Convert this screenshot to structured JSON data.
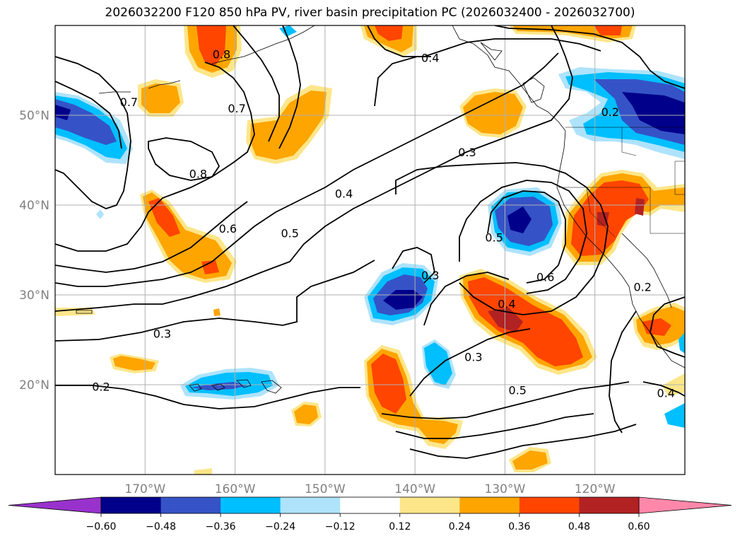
{
  "title": "2026032200 F120 850 hPa PV, river basin precipitation PC (2026032400 - 2026032700)",
  "map": {
    "lon_range": [
      -180,
      -110
    ],
    "lat_range": [
      10,
      60
    ],
    "lat_ticks": [
      {
        "value": 50,
        "label": "50°N"
      },
      {
        "value": 40,
        "label": "40°N"
      },
      {
        "value": 30,
        "label": "30°N"
      },
      {
        "value": 20,
        "label": "20°N"
      }
    ],
    "lon_ticks": [
      {
        "value": -170,
        "label": "170°W"
      },
      {
        "value": -160,
        "label": "160°W"
      },
      {
        "value": -150,
        "label": "150°W"
      },
      {
        "value": -140,
        "label": "140°W"
      },
      {
        "value": -130,
        "label": "130°W"
      },
      {
        "value": -120,
        "label": "120°W"
      }
    ],
    "contour_labels": [
      {
        "text": "0.8",
        "lon": -161.5,
        "lat": 56.8
      },
      {
        "text": "0.7",
        "lon": -171.8,
        "lat": 51.5
      },
      {
        "text": "0.7",
        "lon": -159.8,
        "lat": 50.8
      },
      {
        "text": "0.4",
        "lon": -138.3,
        "lat": 56.4
      },
      {
        "text": "0.2",
        "lon": -118.3,
        "lat": 50.4
      },
      {
        "text": "0.8",
        "lon": -164.1,
        "lat": 43.5
      },
      {
        "text": "0.3",
        "lon": -134.2,
        "lat": 45.9
      },
      {
        "text": "0.4",
        "lon": -147.9,
        "lat": 41.3
      },
      {
        "text": "0.6",
        "lon": -160.8,
        "lat": 37.4
      },
      {
        "text": "0.5",
        "lon": -153.9,
        "lat": 36.9
      },
      {
        "text": "0.5",
        "lon": -131.2,
        "lat": 36.4
      },
      {
        "text": "0.3",
        "lon": -138.3,
        "lat": 32.2
      },
      {
        "text": "0.6",
        "lon": -125.5,
        "lat": 32.0
      },
      {
        "text": "0.2",
        "lon": -114.7,
        "lat": 30.9
      },
      {
        "text": "0.4",
        "lon": -129.8,
        "lat": 29.0
      },
      {
        "text": "0.3",
        "lon": -168.1,
        "lat": 25.7
      },
      {
        "text": "0.3",
        "lon": -133.5,
        "lat": 23.1
      },
      {
        "text": "0.5",
        "lon": -128.6,
        "lat": 19.4
      },
      {
        "text": "0.2",
        "lon": -174.9,
        "lat": 19.8
      },
      {
        "text": "0.4",
        "lon": -112.1,
        "lat": 19.1
      }
    ]
  },
  "colorbar": {
    "labels": [
      "−0.60",
      "−0.48",
      "−0.36",
      "−0.24",
      "−0.12",
      "0.12",
      "0.24",
      "0.36",
      "0.48",
      "0.60"
    ],
    "colors": {
      "below": "#9932cc",
      "bins": [
        "#00008b",
        "#3553c7",
        "#00bfff",
        "#aee3fb",
        "#ffffff",
        "#fde68a",
        "#ffa500",
        "#ff4500",
        "#b22222"
      ],
      "above": "#ff88aa"
    }
  },
  "colors": {
    "contour": "#000000",
    "grid": "#b0b0b0",
    "coast": "#000000"
  }
}
